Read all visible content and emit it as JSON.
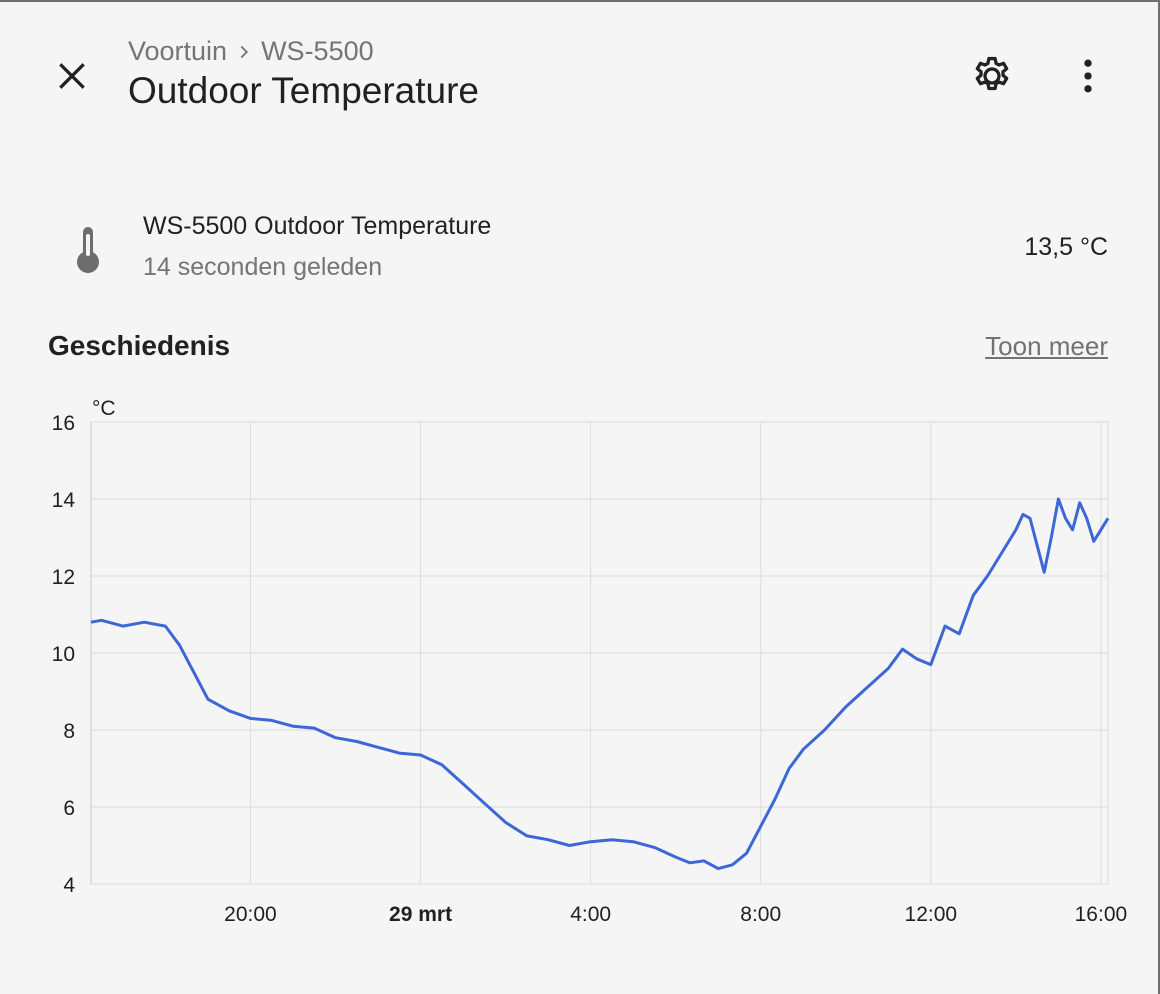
{
  "header": {
    "breadcrumb_area": "Voortuin",
    "breadcrumb_device": "WS-5500",
    "title": "Outdoor Temperature",
    "icons": [
      "close-icon",
      "chevron-right-icon",
      "gear-icon",
      "dots-vertical-icon"
    ]
  },
  "entity": {
    "name": "WS-5500 Outdoor Temperature",
    "last_changed": "14 seconden geleden",
    "value": "13,5 °C",
    "icon": "thermometer-icon"
  },
  "history": {
    "title": "Geschiedenis",
    "more_label": "Toon meer"
  },
  "colors": {
    "line": "#3d66d6",
    "grid": "#dcdcdc"
  },
  "chart_data": {
    "type": "line",
    "ylabel": "°C",
    "ylim": [
      4,
      16
    ],
    "yticks": [
      4,
      6,
      8,
      10,
      12,
      14,
      16
    ],
    "xlim": [
      "28 mrt 16:15",
      "29 mrt 16:10"
    ],
    "xticks": [
      {
        "label": "20:00",
        "t": "28 mrt 20:00",
        "bold": false
      },
      {
        "label": "29 mrt",
        "t": "29 mrt 00:00",
        "bold": true
      },
      {
        "label": "4:00",
        "t": "29 mrt 04:00",
        "bold": false
      },
      {
        "label": "8:00",
        "t": "29 mrt 08:00",
        "bold": false
      },
      {
        "label": "12:00",
        "t": "29 mrt 12:00",
        "bold": false
      },
      {
        "label": "16:00",
        "t": "29 mrt 16:00",
        "bold": false
      }
    ],
    "grid": true,
    "series": [
      {
        "name": "",
        "points": [
          [
            "28 mrt 16:15",
            10.8
          ],
          [
            "28 mrt 16:30",
            10.85
          ],
          [
            "28 mrt 17:00",
            10.7
          ],
          [
            "28 mrt 17:30",
            10.8
          ],
          [
            "28 mrt 18:00",
            10.7
          ],
          [
            "28 mrt 18:20",
            10.2
          ],
          [
            "28 mrt 18:40",
            9.5
          ],
          [
            "28 mrt 19:00",
            8.8
          ],
          [
            "28 mrt 19:30",
            8.5
          ],
          [
            "28 mrt 20:00",
            8.3
          ],
          [
            "28 mrt 20:30",
            8.25
          ],
          [
            "28 mrt 21:00",
            8.1
          ],
          [
            "28 mrt 21:30",
            8.05
          ],
          [
            "28 mrt 22:00",
            7.8
          ],
          [
            "28 mrt 22:30",
            7.7
          ],
          [
            "28 mrt 23:00",
            7.55
          ],
          [
            "28 mrt 23:30",
            7.4
          ],
          [
            "29 mrt 00:00",
            7.35
          ],
          [
            "29 mrt 00:30",
            7.1
          ],
          [
            "29 mrt 01:00",
            6.6
          ],
          [
            "29 mrt 01:30",
            6.1
          ],
          [
            "29 mrt 02:00",
            5.6
          ],
          [
            "29 mrt 02:30",
            5.25
          ],
          [
            "29 mrt 03:00",
            5.15
          ],
          [
            "29 mrt 03:30",
            5.0
          ],
          [
            "29 mrt 04:00",
            5.1
          ],
          [
            "29 mrt 04:30",
            5.15
          ],
          [
            "29 mrt 05:00",
            5.1
          ],
          [
            "29 mrt 05:30",
            4.95
          ],
          [
            "29 mrt 06:00",
            4.7
          ],
          [
            "29 mrt 06:20",
            4.55
          ],
          [
            "29 mrt 06:40",
            4.6
          ],
          [
            "29 mrt 07:00",
            4.4
          ],
          [
            "29 mrt 07:20",
            4.5
          ],
          [
            "29 mrt 07:40",
            4.8
          ],
          [
            "29 mrt 08:00",
            5.5
          ],
          [
            "29 mrt 08:20",
            6.2
          ],
          [
            "29 mrt 08:40",
            7.0
          ],
          [
            "29 mrt 09:00",
            7.5
          ],
          [
            "29 mrt 09:30",
            8.0
          ],
          [
            "29 mrt 10:00",
            8.6
          ],
          [
            "29 mrt 10:30",
            9.1
          ],
          [
            "29 mrt 11:00",
            9.6
          ],
          [
            "29 mrt 11:20",
            10.1
          ],
          [
            "29 mrt 11:40",
            9.85
          ],
          [
            "29 mrt 12:00",
            9.7
          ],
          [
            "29 mrt 12:20",
            10.7
          ],
          [
            "29 mrt 12:40",
            10.5
          ],
          [
            "29 mrt 13:00",
            11.5
          ],
          [
            "29 mrt 13:20",
            12.0
          ],
          [
            "29 mrt 13:40",
            12.6
          ],
          [
            "29 mrt 14:00",
            13.2
          ],
          [
            "29 mrt 14:10",
            13.6
          ],
          [
            "29 mrt 14:20",
            13.5
          ],
          [
            "29 mrt 14:30",
            12.8
          ],
          [
            "29 mrt 14:40",
            12.1
          ],
          [
            "29 mrt 14:50",
            13.0
          ],
          [
            "29 mrt 15:00",
            14.0
          ],
          [
            "29 mrt 15:10",
            13.5
          ],
          [
            "29 mrt 15:20",
            13.2
          ],
          [
            "29 mrt 15:30",
            13.9
          ],
          [
            "29 mrt 15:40",
            13.5
          ],
          [
            "29 mrt 15:50",
            12.9
          ],
          [
            "29 mrt 16:10",
            13.5
          ]
        ]
      }
    ]
  }
}
